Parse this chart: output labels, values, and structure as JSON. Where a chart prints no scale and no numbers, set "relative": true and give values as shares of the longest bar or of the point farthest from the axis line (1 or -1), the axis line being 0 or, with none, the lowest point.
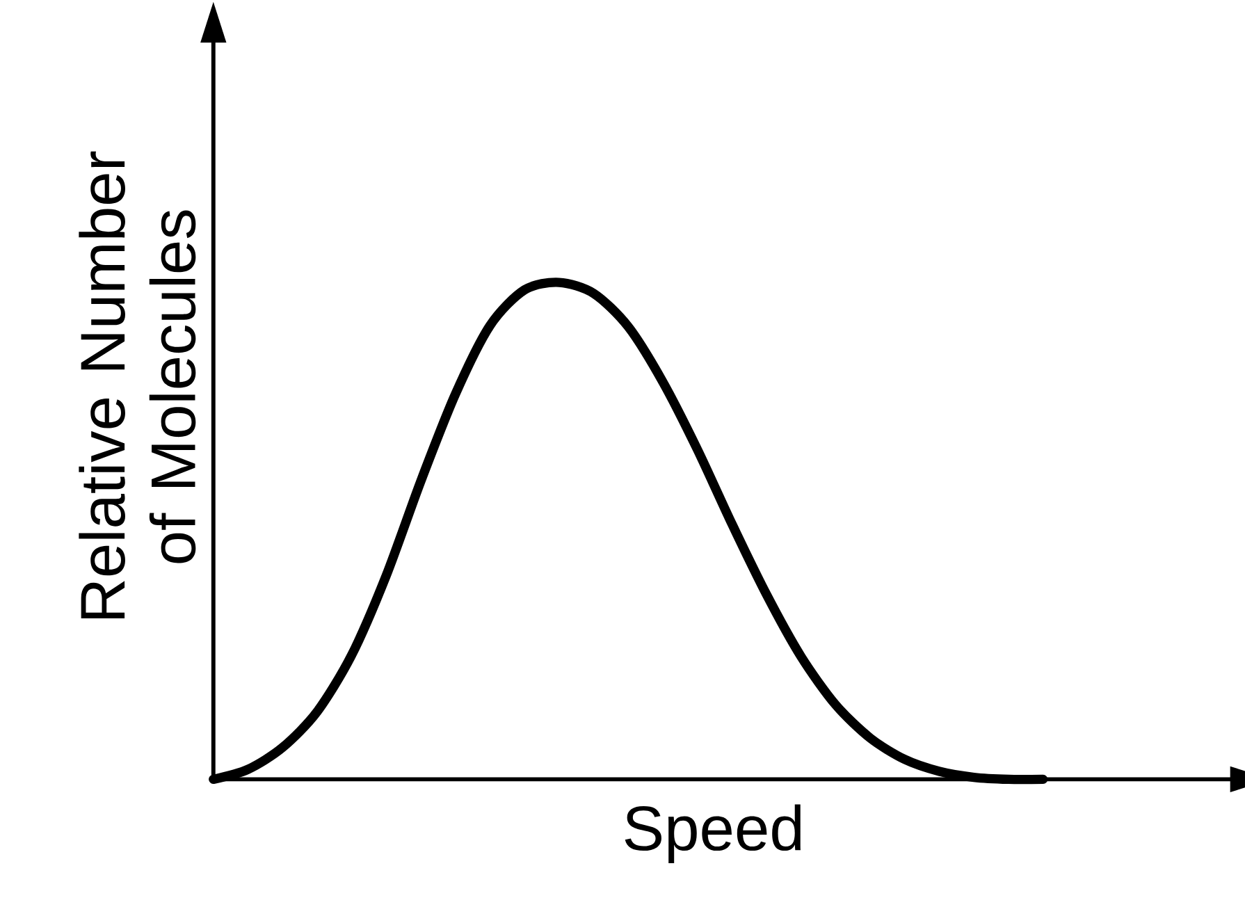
{
  "chart_data": {
    "type": "line",
    "relative": true,
    "xlabel": "Speed",
    "ylabel": "Relative Number of Molecules",
    "categories": [
      null,
      null,
      null,
      null,
      null,
      null,
      null,
      null,
      null,
      null,
      null,
      null,
      null,
      null,
      null,
      null,
      null,
      null,
      null,
      null,
      null,
      null,
      null,
      null,
      null
    ],
    "series": [
      {
        "color": "#000000",
        "values": [
          0,
          0.02,
          0.064,
          0.136,
          0.25,
          0.41,
          0.6,
          0.775,
          0.913,
          0.985,
          1,
          0.978,
          0.911,
          0.8,
          0.664,
          0.514,
          0.372,
          0.247,
          0.15,
          0.083,
          0.04,
          0.016,
          0.004,
          0,
          0
        ]
      }
    ]
  }
}
